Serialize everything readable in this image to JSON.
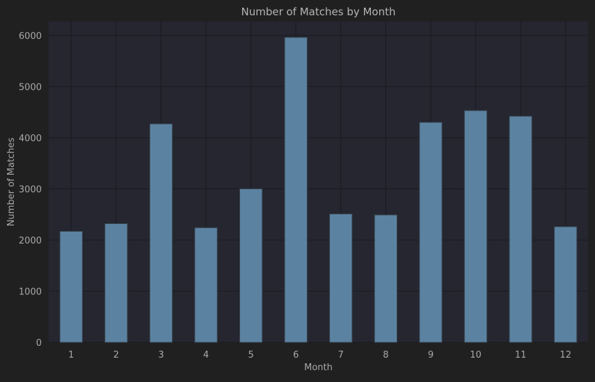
{
  "colors": {
    "background": "#202020",
    "plot_background": "#252630",
    "bar_fill": "#5b83a1",
    "bar_edge": "#3a4450",
    "grid": "#1a1b1e",
    "text": "#a9a9a9",
    "title": "#b4b4b4"
  },
  "chart_data": {
    "type": "bar",
    "title": "Number of Matches by Month",
    "xlabel": "Month",
    "ylabel": "Number of Matches",
    "categories": [
      "1",
      "2",
      "3",
      "4",
      "5",
      "6",
      "7",
      "8",
      "9",
      "10",
      "11",
      "12"
    ],
    "values": [
      2170,
      2320,
      4270,
      2240,
      3000,
      5960,
      2510,
      2490,
      4300,
      4530,
      4420,
      2260
    ],
    "ylim": [
      0,
      6270
    ],
    "yticks": [
      0,
      1000,
      2000,
      3000,
      4000,
      5000,
      6000
    ],
    "grid": true,
    "legend": "none"
  }
}
